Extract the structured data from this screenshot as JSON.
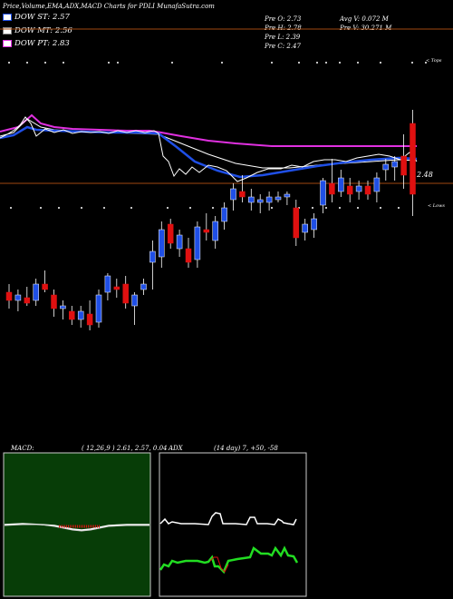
{
  "header": {
    "title": "Price,Volume,EMA,ADX,MACD Charts for PDLI MunafaSutra.com",
    "dow_st": "DOW ST: 2.57",
    "dow_mt": "DOW MT: 2.56",
    "dow_pt": "DOW PT: 2.83",
    "prev_open": "Pre  O: 2.73",
    "prev_high": "Pre  H: 2.78",
    "prev_low": "Pre  L: 2.39",
    "prev_close": "Pre  C: 2.47",
    "avg_volume": "Avg V: 0.072  M",
    "prev_volume": "Pre  V: 30.271 M"
  },
  "colors": {
    "bull": "#1f4fe6",
    "bear": "#e01010",
    "ema_short": "#1f4fe6",
    "ema_long": "#e020e0",
    "macd_bg": "#073d07",
    "divider": "#a04810",
    "dow_st": "#1f4fe6",
    "dow_mt": "#ffffff",
    "dow_pt": "#e030e0"
  },
  "labels": {
    "tops": "< Tops",
    "lows": "< Lows",
    "ema_last": "2.48",
    "macd": "MACD:",
    "macd_params": "( 12,26,9 ) 2.61,  2.57,  0.04",
    "adx": "ADX",
    "adx_params": "(14  day) 7,  +50,  -58"
  },
  "chart_data": [
    {
      "type": "candlestick",
      "title": "Price",
      "series": [
        {
          "name": "ohlc",
          "values": [
            [
              2.11,
              2.14,
              2.05,
              2.08
            ],
            [
              2.08,
              2.12,
              2.04,
              2.1
            ],
            [
              2.09,
              2.13,
              2.06,
              2.07
            ],
            [
              2.08,
              2.16,
              2.06,
              2.14
            ],
            [
              2.14,
              2.19,
              2.11,
              2.12
            ],
            [
              2.1,
              2.12,
              2.02,
              2.05
            ],
            [
              2.05,
              2.08,
              2.01,
              2.06
            ],
            [
              2.04,
              2.06,
              1.99,
              2.01
            ],
            [
              2.01,
              2.06,
              1.98,
              2.04
            ],
            [
              2.03,
              2.08,
              1.97,
              1.99
            ],
            [
              2.0,
              2.12,
              1.98,
              2.1
            ],
            [
              2.11,
              2.18,
              2.08,
              2.17
            ],
            [
              2.13,
              2.16,
              2.09,
              2.12
            ],
            [
              2.14,
              2.17,
              2.05,
              2.07
            ],
            [
              2.06,
              2.11,
              1.99,
              2.1
            ],
            [
              2.12,
              2.16,
              2.1,
              2.14
            ],
            [
              2.22,
              2.3,
              2.12,
              2.26
            ],
            [
              2.24,
              2.37,
              2.2,
              2.34
            ],
            [
              2.36,
              2.38,
              2.27,
              2.29
            ],
            [
              2.27,
              2.34,
              2.24,
              2.32
            ],
            [
              2.27,
              2.31,
              2.2,
              2.22
            ],
            [
              2.23,
              2.37,
              2.2,
              2.35
            ],
            [
              2.34,
              2.4,
              2.3,
              2.33
            ],
            [
              2.3,
              2.39,
              2.27,
              2.37
            ],
            [
              2.37,
              2.44,
              2.34,
              2.42
            ],
            [
              2.45,
              2.51,
              2.41,
              2.49
            ],
            [
              2.48,
              2.54,
              2.44,
              2.46
            ],
            [
              2.44,
              2.49,
              2.41,
              2.46
            ],
            [
              2.44,
              2.47,
              2.4,
              2.45
            ],
            [
              2.44,
              2.48,
              2.41,
              2.46
            ],
            [
              2.45,
              2.48,
              2.44,
              2.46
            ],
            [
              2.46,
              2.48,
              2.43,
              2.47
            ],
            [
              2.42,
              2.45,
              2.28,
              2.31
            ],
            [
              2.33,
              2.38,
              2.3,
              2.36
            ],
            [
              2.34,
              2.4,
              2.31,
              2.38
            ],
            [
              2.43,
              2.53,
              2.4,
              2.52
            ],
            [
              2.51,
              2.6,
              2.44,
              2.47
            ],
            [
              2.48,
              2.56,
              2.46,
              2.53
            ],
            [
              2.5,
              2.53,
              2.44,
              2.47
            ],
            [
              2.48,
              2.52,
              2.45,
              2.5
            ],
            [
              2.5,
              2.52,
              2.45,
              2.47
            ],
            [
              2.48,
              2.55,
              2.44,
              2.53
            ],
            [
              2.56,
              2.6,
              2.52,
              2.58
            ],
            [
              2.57,
              2.61,
              2.52,
              2.59
            ],
            [
              2.61,
              2.69,
              2.49,
              2.54
            ],
            [
              2.73,
              2.78,
              2.39,
              2.47
            ]
          ]
        }
      ]
    },
    {
      "type": "line",
      "title": "MACD",
      "series": [
        {
          "name": "MACD",
          "values": [
            2.61
          ]
        },
        {
          "name": "Signal",
          "values": [
            2.57
          ]
        },
        {
          "name": "Histogram",
          "values": [
            0.04
          ]
        }
      ]
    },
    {
      "type": "line",
      "title": "ADX",
      "series": [
        {
          "name": "ADX",
          "values": [
            7
          ]
        },
        {
          "name": "+DI",
          "values": [
            50
          ]
        },
        {
          "name": "-DI",
          "values": [
            58
          ]
        }
      ]
    }
  ]
}
